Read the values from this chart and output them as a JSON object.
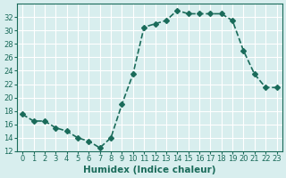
{
  "x": [
    0,
    1,
    2,
    3,
    4,
    5,
    6,
    7,
    8,
    9,
    10,
    11,
    12,
    13,
    14,
    15,
    16,
    17,
    18,
    19,
    20,
    21,
    22,
    23
  ],
  "y": [
    17.5,
    16.5,
    16.5,
    15.5,
    15.0,
    14.0,
    13.5,
    12.5,
    14.0,
    19.0,
    23.5,
    30.5,
    31.0,
    31.5,
    33.0,
    32.5,
    32.5,
    32.5,
    32.5,
    31.5,
    27.0,
    23.5,
    21.5,
    21.5
  ],
  "line_color": "#1a6b5a",
  "marker": "D",
  "marker_size": 3,
  "bg_color": "#d8eeee",
  "grid_color": "#ffffff",
  "xlabel": "Humidex (Indice chaleur)",
  "xlim": [
    -0.5,
    23.5
  ],
  "ylim": [
    12,
    34
  ],
  "yticks": [
    12,
    14,
    16,
    18,
    20,
    22,
    24,
    26,
    28,
    30,
    32
  ],
  "xticks": [
    0,
    1,
    2,
    3,
    4,
    5,
    6,
    7,
    8,
    9,
    10,
    11,
    12,
    13,
    14,
    15,
    16,
    17,
    18,
    19,
    20,
    21,
    22,
    23
  ],
  "tick_fontsize": 6,
  "xlabel_fontsize": 7.5,
  "line_width": 1.2
}
